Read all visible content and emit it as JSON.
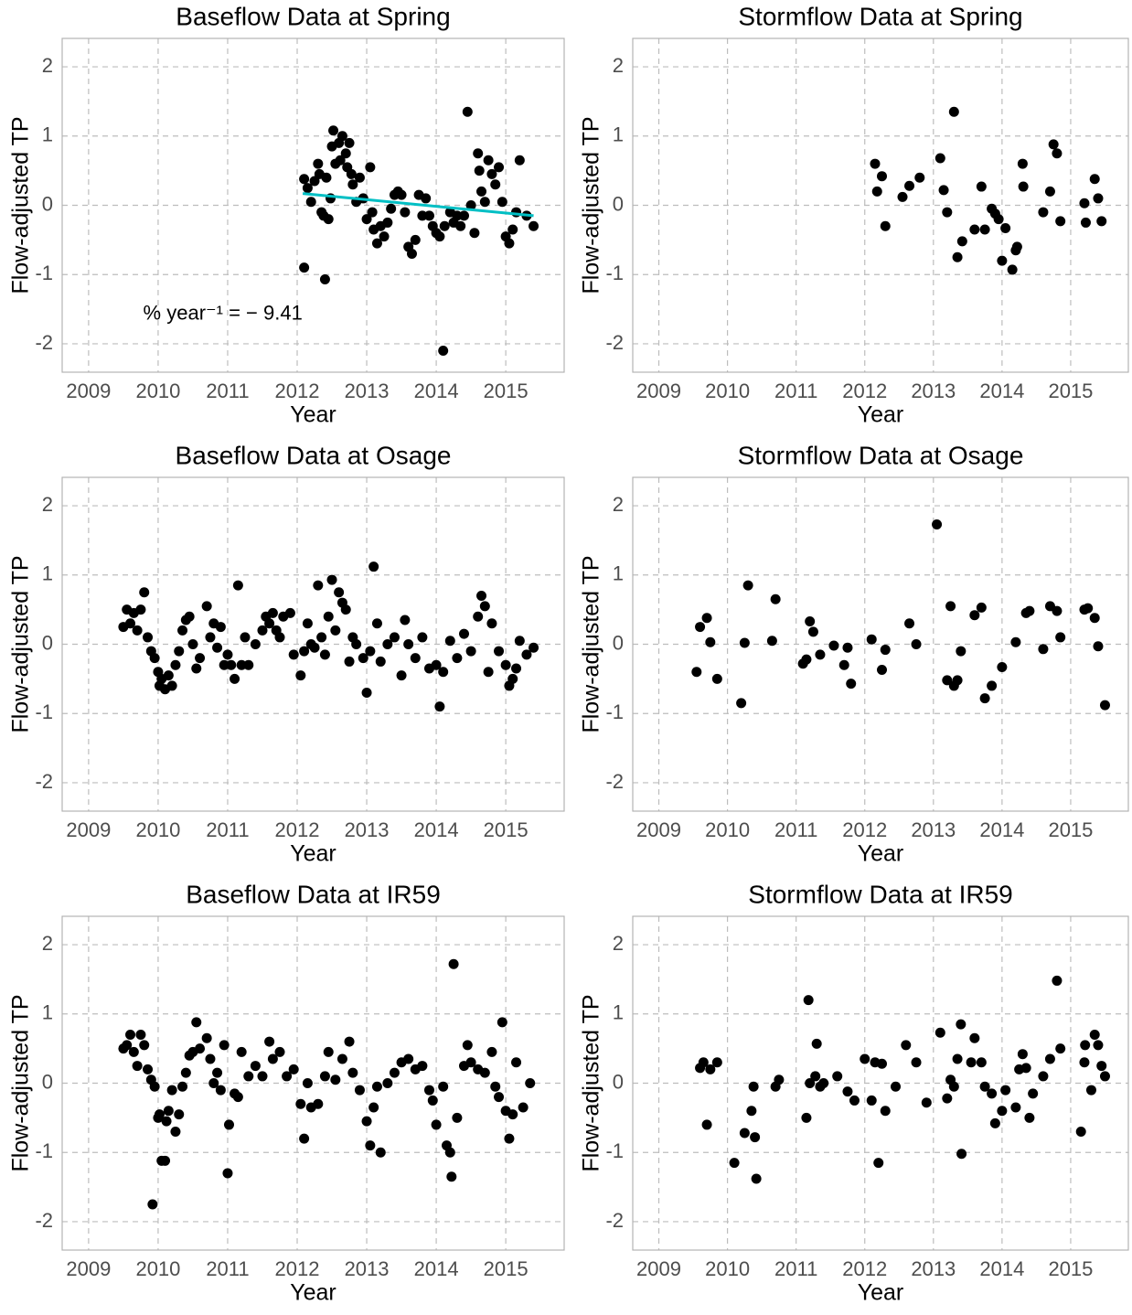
{
  "chart_data": [
    {
      "type": "scatter",
      "title": "Baseflow Data at Spring",
      "x_label": "Year",
      "y_label": "Flow-adjusted TP",
      "color": "#000000",
      "x": [
        2012.1,
        2012.1,
        2012.15,
        2012.2,
        2012.25,
        2012.3,
        2012.32,
        2012.35,
        2012.38,
        2012.4,
        2012.42,
        2012.45,
        2012.48,
        2012.5,
        2012.52,
        2012.55,
        2012.6,
        2012.62,
        2012.65,
        2012.7,
        2012.72,
        2012.75,
        2012.78,
        2012.8,
        2012.85,
        2012.9,
        2012.95,
        2013.0,
        2013.05,
        2013.08,
        2013.1,
        2013.15,
        2013.2,
        2013.25,
        2013.3,
        2013.35,
        2013.4,
        2013.45,
        2013.5,
        2013.55,
        2013.6,
        2013.65,
        2013.7,
        2013.75,
        2013.8,
        2013.85,
        2013.9,
        2013.95,
        2014.0,
        2014.05,
        2014.1,
        2014.12,
        2014.2,
        2014.25,
        2014.3,
        2014.35,
        2014.4,
        2014.45,
        2014.5,
        2014.55,
        2014.6,
        2014.62,
        2014.65,
        2014.7,
        2014.75,
        2014.8,
        2014.85,
        2014.9,
        2014.95,
        2015.0,
        2015.05,
        2015.1,
        2015.15,
        2015.2,
        2015.3,
        2015.4
      ],
      "values": [
        0.38,
        -0.9,
        0.25,
        0.05,
        0.35,
        0.6,
        0.45,
        -0.1,
        -0.15,
        -1.07,
        0.4,
        -0.2,
        0.1,
        0.85,
        1.08,
        0.6,
        0.9,
        0.65,
        1.0,
        0.75,
        0.55,
        0.9,
        0.45,
        0.3,
        0.05,
        0.4,
        0.1,
        -0.2,
        0.55,
        -0.1,
        -0.35,
        -0.55,
        -0.3,
        -0.45,
        -0.25,
        -0.05,
        0.15,
        0.2,
        0.15,
        -0.1,
        -0.6,
        -0.7,
        -0.5,
        0.15,
        -0.15,
        0.1,
        -0.15,
        -0.3,
        -0.4,
        -0.45,
        -2.1,
        -0.3,
        -0.1,
        -0.25,
        -0.15,
        -0.3,
        -0.15,
        1.35,
        0.0,
        -0.4,
        0.75,
        0.5,
        0.2,
        0.05,
        0.65,
        0.45,
        0.3,
        0.55,
        0.05,
        -0.45,
        -0.55,
        -0.35,
        -0.1,
        0.65,
        -0.15,
        -0.3
      ],
      "trend": {
        "x": [
          2012.08,
          2015.4
        ],
        "values": [
          0.17,
          -0.15
        ],
        "color": "#00bfc4"
      },
      "annotation": "% year⁻¹ = − 9.41",
      "xlim": [
        2008.62,
        2015.84
      ],
      "ylim": [
        -2.41,
        2.41
      ],
      "xticks": [
        2009,
        2010,
        2011,
        2012,
        2013,
        2014,
        2015
      ],
      "yticks": [
        -2,
        -1,
        0,
        1,
        2
      ],
      "grid": true
    },
    {
      "type": "scatter",
      "title": "Stormflow Data at Spring",
      "x_label": "Year",
      "y_label": "Flow-adjusted TP",
      "color": "#000000",
      "x": [
        2012.15,
        2012.18,
        2012.25,
        2012.3,
        2012.55,
        2012.65,
        2012.8,
        2013.1,
        2013.15,
        2013.2,
        2013.3,
        2013.35,
        2013.42,
        2013.6,
        2013.7,
        2013.75,
        2013.85,
        2013.9,
        2013.95,
        2014.0,
        2014.05,
        2014.15,
        2014.2,
        2014.22,
        2014.3,
        2014.31,
        2014.6,
        2014.7,
        2014.75,
        2014.8,
        2014.85,
        2015.2,
        2015.22,
        2015.35,
        2015.4,
        2015.45
      ],
      "values": [
        0.6,
        0.2,
        0.42,
        -0.3,
        0.12,
        0.28,
        0.4,
        0.68,
        0.22,
        -0.1,
        1.35,
        -0.75,
        -0.52,
        -0.35,
        0.27,
        -0.35,
        -0.05,
        -0.12,
        -0.2,
        -0.8,
        -0.33,
        -0.93,
        -0.65,
        -0.6,
        0.6,
        0.27,
        -0.1,
        0.2,
        0.88,
        0.75,
        -0.23,
        0.03,
        -0.25,
        0.38,
        0.1,
        -0.23
      ],
      "xlim": [
        2008.62,
        2015.84
      ],
      "ylim": [
        -2.41,
        2.41
      ],
      "xticks": [
        2009,
        2010,
        2011,
        2012,
        2013,
        2014,
        2015
      ],
      "yticks": [
        -2,
        -1,
        0,
        1,
        2
      ],
      "grid": true
    },
    {
      "type": "scatter",
      "title": "Baseflow Data at Osage",
      "x_label": "Year",
      "y_label": "Flow-adjusted TP",
      "color": "#000000",
      "x": [
        2009.5,
        2009.55,
        2009.6,
        2009.65,
        2009.7,
        2009.75,
        2009.8,
        2009.85,
        2009.9,
        2009.95,
        2010.0,
        2010.02,
        2010.05,
        2010.1,
        2010.15,
        2010.2,
        2010.25,
        2010.3,
        2010.35,
        2010.4,
        2010.45,
        2010.5,
        2010.55,
        2010.6,
        2010.7,
        2010.75,
        2010.8,
        2010.85,
        2010.9,
        2010.95,
        2011.0,
        2011.05,
        2011.1,
        2011.15,
        2011.2,
        2011.25,
        2011.3,
        2011.4,
        2011.5,
        2011.55,
        2011.6,
        2011.65,
        2011.7,
        2011.75,
        2011.8,
        2011.9,
        2011.95,
        2012.05,
        2012.1,
        2012.15,
        2012.2,
        2012.25,
        2012.3,
        2012.35,
        2012.4,
        2012.45,
        2012.5,
        2012.55,
        2012.6,
        2012.65,
        2012.7,
        2012.75,
        2012.8,
        2012.85,
        2012.95,
        2013.0,
        2013.05,
        2013.1,
        2013.15,
        2013.2,
        2013.3,
        2013.4,
        2013.5,
        2013.55,
        2013.6,
        2013.7,
        2013.8,
        2013.9,
        2014.0,
        2014.05,
        2014.1,
        2014.2,
        2014.3,
        2014.4,
        2014.5,
        2014.6,
        2014.65,
        2014.7,
        2014.75,
        2014.8,
        2014.9,
        2015.0,
        2015.05,
        2015.1,
        2015.15,
        2015.2,
        2015.3,
        2015.4
      ],
      "values": [
        0.25,
        0.5,
        0.3,
        0.45,
        0.2,
        0.5,
        0.75,
        0.1,
        -0.1,
        -0.2,
        -0.4,
        -0.6,
        -0.5,
        -0.65,
        -0.45,
        -0.6,
        -0.3,
        -0.1,
        0.2,
        0.35,
        0.4,
        0.0,
        -0.35,
        -0.2,
        0.55,
        0.1,
        0.3,
        -0.05,
        0.25,
        -0.3,
        -0.15,
        -0.3,
        -0.5,
        0.85,
        -0.3,
        0.1,
        -0.3,
        0.0,
        0.2,
        0.4,
        0.3,
        0.45,
        0.2,
        0.1,
        0.4,
        0.45,
        -0.15,
        -0.45,
        -0.1,
        0.3,
        0.0,
        -0.05,
        0.85,
        0.1,
        -0.15,
        0.4,
        0.93,
        0.2,
        0.75,
        0.6,
        0.5,
        -0.25,
        0.1,
        0.0,
        -0.2,
        -0.7,
        -0.1,
        1.12,
        0.3,
        -0.25,
        0.0,
        0.1,
        -0.45,
        0.35,
        0.0,
        -0.2,
        0.1,
        -0.35,
        -0.3,
        -0.9,
        -0.4,
        0.05,
        -0.2,
        0.15,
        -0.1,
        0.4,
        0.7,
        0.55,
        -0.4,
        0.3,
        -0.1,
        -0.3,
        -0.6,
        -0.5,
        -0.35,
        0.05,
        -0.15,
        -0.05
      ],
      "xlim": [
        2008.62,
        2015.84
      ],
      "ylim": [
        -2.41,
        2.41
      ],
      "xticks": [
        2009,
        2010,
        2011,
        2012,
        2013,
        2014,
        2015
      ],
      "yticks": [
        -2,
        -1,
        0,
        1,
        2
      ],
      "grid": true
    },
    {
      "type": "scatter",
      "title": "Stormflow Data at Osage",
      "x_label": "Year",
      "y_label": "Flow-adjusted TP",
      "color": "#000000",
      "x": [
        2009.55,
        2009.6,
        2009.7,
        2009.75,
        2009.85,
        2010.2,
        2010.25,
        2010.3,
        2010.65,
        2010.7,
        2011.1,
        2011.15,
        2011.2,
        2011.25,
        2011.35,
        2011.55,
        2011.7,
        2011.75,
        2011.8,
        2012.1,
        2012.25,
        2012.3,
        2012.65,
        2012.75,
        2013.05,
        2013.2,
        2013.25,
        2013.3,
        2013.35,
        2013.4,
        2013.6,
        2013.7,
        2013.75,
        2013.85,
        2014.0,
        2014.2,
        2014.35,
        2014.4,
        2014.6,
        2014.7,
        2014.8,
        2014.85,
        2015.2,
        2015.25,
        2015.35,
        2015.4,
        2015.5
      ],
      "values": [
        -0.4,
        0.25,
        0.38,
        0.03,
        -0.5,
        -0.85,
        0.02,
        0.85,
        0.05,
        0.65,
        -0.28,
        -0.22,
        0.33,
        0.18,
        -0.15,
        -0.02,
        -0.3,
        -0.05,
        -0.57,
        0.07,
        -0.37,
        -0.08,
        0.3,
        0.0,
        1.73,
        -0.52,
        0.55,
        -0.6,
        -0.52,
        -0.1,
        0.42,
        0.53,
        -0.78,
        -0.6,
        -0.33,
        0.03,
        0.45,
        0.48,
        -0.07,
        0.55,
        0.48,
        0.1,
        0.5,
        0.52,
        0.38,
        -0.03,
        -0.88
      ],
      "xlim": [
        2008.62,
        2015.84
      ],
      "ylim": [
        -2.41,
        2.41
      ],
      "xticks": [
        2009,
        2010,
        2011,
        2012,
        2013,
        2014,
        2015
      ],
      "yticks": [
        -2,
        -1,
        0,
        1,
        2
      ],
      "grid": true
    },
    {
      "type": "scatter",
      "title": "Baseflow Data at IR59",
      "x_label": "Year",
      "y_label": "Flow-adjusted TP",
      "color": "#000000",
      "x": [
        2009.5,
        2009.55,
        2009.6,
        2009.65,
        2009.7,
        2009.75,
        2009.8,
        2009.85,
        2009.9,
        2009.95,
        2009.92,
        2010.0,
        2010.02,
        2010.05,
        2010.1,
        2010.12,
        2010.15,
        2010.2,
        2010.25,
        2010.3,
        2010.35,
        2010.4,
        2010.45,
        2010.5,
        2010.55,
        2010.6,
        2010.7,
        2010.75,
        2010.8,
        2010.85,
        2010.9,
        2010.95,
        2011.0,
        2011.02,
        2011.1,
        2011.15,
        2011.2,
        2011.3,
        2011.4,
        2011.5,
        2011.6,
        2011.65,
        2011.75,
        2011.85,
        2011.95,
        2012.05,
        2012.1,
        2012.15,
        2012.2,
        2012.3,
        2012.4,
        2012.45,
        2012.55,
        2012.65,
        2012.75,
        2012.8,
        2012.9,
        2013.0,
        2013.05,
        2013.1,
        2013.15,
        2013.2,
        2013.3,
        2013.4,
        2013.5,
        2013.6,
        2013.7,
        2013.8,
        2013.9,
        2013.95,
        2014.0,
        2014.1,
        2014.15,
        2014.2,
        2014.22,
        2014.25,
        2014.3,
        2014.4,
        2014.45,
        2014.5,
        2014.6,
        2014.7,
        2014.8,
        2014.85,
        2014.9,
        2014.95,
        2015.0,
        2015.05,
        2015.1,
        2015.15,
        2015.25,
        2015.35
      ],
      "values": [
        0.5,
        0.55,
        0.7,
        0.45,
        0.25,
        0.7,
        0.55,
        0.2,
        0.05,
        -0.05,
        -1.75,
        -0.5,
        -0.45,
        -1.12,
        -1.12,
        -0.55,
        -0.4,
        -0.1,
        -0.7,
        -0.45,
        -0.05,
        0.15,
        0.4,
        0.45,
        0.88,
        0.5,
        0.65,
        0.35,
        0.0,
        0.15,
        -0.1,
        0.55,
        -1.3,
        -0.6,
        -0.15,
        -0.2,
        0.45,
        0.1,
        0.25,
        0.1,
        0.6,
        0.35,
        0.45,
        0.1,
        0.2,
        -0.3,
        -0.8,
        0.0,
        -0.35,
        -0.3,
        0.1,
        0.45,
        0.05,
        0.35,
        0.6,
        0.15,
        -0.1,
        -0.55,
        -0.9,
        -0.35,
        -0.05,
        -1.0,
        0.0,
        0.15,
        0.3,
        0.35,
        0.2,
        0.25,
        -0.1,
        -0.25,
        -0.6,
        -0.05,
        -0.9,
        -1.0,
        -1.35,
        1.72,
        -0.5,
        0.25,
        0.55,
        0.3,
        0.2,
        0.15,
        0.45,
        -0.05,
        -0.2,
        0.88,
        -0.4,
        -0.8,
        -0.45,
        0.3,
        -0.35,
        0.0
      ],
      "xlim": [
        2008.62,
        2015.84
      ],
      "ylim": [
        -2.41,
        2.41
      ],
      "xticks": [
        2009,
        2010,
        2011,
        2012,
        2013,
        2014,
        2015
      ],
      "yticks": [
        -2,
        -1,
        0,
        1,
        2
      ],
      "grid": true
    },
    {
      "type": "scatter",
      "title": "Stormflow Data at IR59",
      "x_label": "Year",
      "y_label": "Flow-adjusted TP",
      "color": "#000000",
      "x": [
        2009.6,
        2009.65,
        2009.7,
        2009.75,
        2009.85,
        2010.1,
        2010.25,
        2010.35,
        2010.38,
        2010.4,
        2010.42,
        2010.7,
        2010.75,
        2011.15,
        2011.18,
        2011.2,
        2011.28,
        2011.3,
        2011.35,
        2011.4,
        2011.6,
        2011.75,
        2011.85,
        2012.0,
        2012.1,
        2012.15,
        2012.2,
        2012.25,
        2012.3,
        2012.45,
        2012.6,
        2012.75,
        2012.9,
        2013.1,
        2013.2,
        2013.25,
        2013.3,
        2013.35,
        2013.4,
        2013.41,
        2013.55,
        2013.6,
        2013.7,
        2013.75,
        2013.85,
        2013.9,
        2014.0,
        2014.05,
        2014.2,
        2014.25,
        2014.3,
        2014.35,
        2014.4,
        2014.45,
        2014.6,
        2014.7,
        2014.8,
        2014.85,
        2015.15,
        2015.2,
        2015.21,
        2015.3,
        2015.35,
        2015.4,
        2015.45,
        2015.5
      ],
      "values": [
        0.22,
        0.3,
        -0.6,
        0.2,
        0.3,
        -1.15,
        -0.72,
        -0.4,
        -0.05,
        -0.78,
        -1.38,
        -0.05,
        0.05,
        -0.5,
        1.2,
        0.0,
        0.1,
        0.57,
        -0.05,
        0.0,
        0.1,
        -0.12,
        -0.25,
        0.35,
        -0.25,
        0.3,
        -1.15,
        0.28,
        -0.4,
        -0.05,
        0.55,
        0.3,
        -0.28,
        0.73,
        -0.22,
        0.05,
        -0.05,
        0.35,
        0.85,
        -1.02,
        0.3,
        0.65,
        0.3,
        -0.05,
        -0.15,
        -0.58,
        -0.4,
        -0.1,
        -0.35,
        0.2,
        0.42,
        0.22,
        -0.5,
        -0.15,
        0.1,
        0.35,
        1.48,
        0.5,
        -0.7,
        0.3,
        0.55,
        -0.1,
        0.7,
        0.55,
        0.25,
        0.1
      ],
      "xlim": [
        2008.62,
        2015.84
      ],
      "ylim": [
        -2.41,
        2.41
      ],
      "xticks": [
        2009,
        2010,
        2011,
        2012,
        2013,
        2014,
        2015
      ],
      "yticks": [
        -2,
        -1,
        0,
        1,
        2
      ],
      "grid": true
    }
  ]
}
